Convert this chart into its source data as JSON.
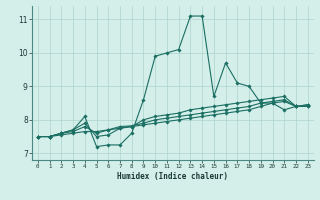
{
  "xlabel": "Humidex (Indice chaleur)",
  "ylabel": "",
  "bg_color": "#d4eeea",
  "line_color": "#1a6e62",
  "grid_color": "#aed4ce",
  "xlim": [
    -0.5,
    23.5
  ],
  "ylim": [
    6.8,
    11.4
  ],
  "yticks": [
    7,
    8,
    9,
    10,
    11
  ],
  "xticks": [
    0,
    1,
    2,
    3,
    4,
    5,
    6,
    7,
    8,
    9,
    10,
    11,
    12,
    13,
    14,
    15,
    16,
    17,
    18,
    19,
    20,
    21,
    22,
    23
  ],
  "series": [
    [
      7.5,
      7.5,
      7.6,
      7.7,
      8.1,
      7.2,
      7.25,
      7.25,
      7.6,
      8.6,
      9.9,
      10.0,
      10.1,
      11.1,
      11.1,
      8.7,
      9.7,
      9.1,
      9.0,
      8.5,
      8.5,
      8.3,
      8.4,
      8.4
    ],
    [
      7.5,
      7.5,
      7.6,
      7.7,
      7.9,
      7.5,
      7.55,
      7.75,
      7.8,
      8.0,
      8.1,
      8.15,
      8.2,
      8.3,
      8.35,
      8.4,
      8.45,
      8.5,
      8.55,
      8.6,
      8.65,
      8.7,
      8.4,
      8.45
    ],
    [
      7.5,
      7.5,
      7.6,
      7.65,
      7.8,
      7.6,
      7.7,
      7.8,
      7.82,
      7.9,
      8.0,
      8.05,
      8.1,
      8.15,
      8.2,
      8.25,
      8.3,
      8.35,
      8.4,
      8.5,
      8.55,
      8.6,
      8.4,
      8.45
    ],
    [
      7.5,
      7.5,
      7.55,
      7.6,
      7.65,
      7.65,
      7.7,
      7.75,
      7.8,
      7.85,
      7.9,
      7.95,
      8.0,
      8.05,
      8.1,
      8.15,
      8.2,
      8.25,
      8.3,
      8.4,
      8.5,
      8.55,
      8.4,
      8.4
    ]
  ]
}
